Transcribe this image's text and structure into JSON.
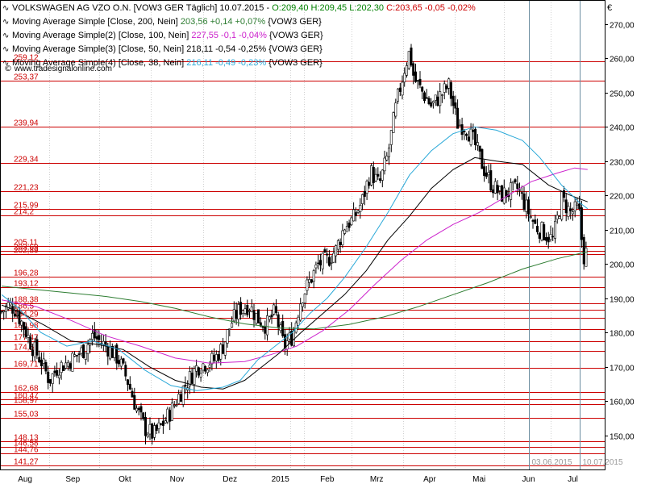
{
  "legend": {
    "title_row": {
      "name": "VOLKSWAGEN AG VZO O.N. [VOW3 GER  Täglich]",
      "date": "10.07.2015",
      "sep": "-",
      "ohlc": "O:209,40 H:209,45 L:202,30",
      "change": "C:203,65 -0,05 -0,02%"
    },
    "rows": [
      {
        "label": "Moving Average Simple [Close, 200, Nein]",
        "value": "203,56 +0,14 +0,07%",
        "ticker": "{VOW3 GER}",
        "color": "#2e7d32"
      },
      {
        "label": "Moving Average Simple(2) [Close, 100, Nein]",
        "value": "227,55 -0,1 -0,04%",
        "ticker": "{VOW3 GER}",
        "color": "#cc22cc"
      },
      {
        "label": "Moving Average Simple(3) [Close, 50, Nein]",
        "value": "218,11 -0,54 -0,25%",
        "ticker": "{VOW3 GER}",
        "color": "#000000"
      },
      {
        "label": "Moving Average Simple(4) [Close, 38, Nein]",
        "value": "216,11 -0,49 -0,23%",
        "ticker": "{VOW3 GER}",
        "color": "#29a8d8"
      }
    ],
    "icon": "wave-icon"
  },
  "source": {
    "text": "www.tradesignalonline.com",
    "icon": "copyright-icon"
  },
  "colors": {
    "hline": "#cc0000",
    "level_text": "#cc0000",
    "grid": "#d0d0d0",
    "ma200": "#2e7d32",
    "ma100": "#cc22cc",
    "ma50": "#000000",
    "ma38": "#29a8d8",
    "candle_up": "#ffffff",
    "candle_down": "#000000",
    "marker": "#6c8ea0",
    "green_text": "#008000",
    "red_text": "#cc0000"
  },
  "chart_data": {
    "type": "candlestick",
    "currency": "€",
    "y_range": [
      140,
      277
    ],
    "y_ticks": [
      150,
      160,
      170,
      180,
      190,
      200,
      210,
      220,
      230,
      240,
      250,
      260,
      270
    ],
    "y_tick_labels": [
      "150,00",
      "160,00",
      "170,00",
      "180,00",
      "190,00",
      "200,00",
      "210,00",
      "220,00",
      "230,00",
      "240,00",
      "250,00",
      "260,00",
      "270,00"
    ],
    "x_labels": [
      "Aug",
      "Sep",
      "Okt",
      "Nov",
      "Dez",
      "2015",
      "Feb",
      "Mrz",
      "Apr",
      "Mai",
      "Jun",
      "Jul"
    ],
    "x_label_days": [
      27,
      82,
      142,
      202,
      263,
      321,
      375,
      432,
      493,
      550,
      607,
      658
    ],
    "x_range_days": [
      0,
      690
    ],
    "date_markers": [
      {
        "label": "03.06.2015",
        "day": 607
      },
      {
        "label": "10.07.2015",
        "day": 666
      }
    ],
    "levels": [
      {
        "label": "239,94",
        "value": 239.94
      },
      {
        "label": "229,34",
        "value": 229.34
      },
      {
        "label": "221,23",
        "value": 221.23
      },
      {
        "label": "215,99",
        "value": 215.99
      },
      {
        "label": "214,2",
        "value": 214.2
      },
      {
        "label": "205,11",
        "value": 205.11
      },
      {
        "label": "203,69",
        "value": 203.69
      },
      {
        "label": "202,89",
        "value": 202.89
      },
      {
        "label": "196,28",
        "value": 196.28
      },
      {
        "label": "193,12",
        "value": 193.12
      },
      {
        "label": "188,38",
        "value": 188.38
      },
      {
        "label": "186,5",
        "value": 186.5
      },
      {
        "label": "184,29",
        "value": 184.29
      },
      {
        "label": "180,98",
        "value": 180.98
      },
      {
        "label": "177,47",
        "value": 177.47
      },
      {
        "label": "174,54",
        "value": 174.54
      },
      {
        "label": "169,71",
        "value": 169.71
      },
      {
        "label": "162,68",
        "value": 162.68
      },
      {
        "label": "160,47",
        "value": 160.47
      },
      {
        "label": "158,97",
        "value": 158.97
      },
      {
        "label": "155,03",
        "value": 155.03
      },
      {
        "label": "148,13",
        "value": 148.13
      },
      {
        "label": "146,58",
        "value": 146.58
      },
      {
        "label": "144,76",
        "value": 144.76
      },
      {
        "label": "141,27",
        "value": 141.27
      },
      {
        "label": "253,37",
        "value": 253.37
      },
      {
        "label": "259,12",
        "value": 259.12
      }
    ],
    "close_anchors": [
      [
        0,
        186
      ],
      [
        8,
        188
      ],
      [
        15,
        187
      ],
      [
        25,
        182
      ],
      [
        35,
        176
      ],
      [
        45,
        172
      ],
      [
        55,
        166
      ],
      [
        65,
        170
      ],
      [
        75,
        171
      ],
      [
        85,
        173
      ],
      [
        95,
        175
      ],
      [
        105,
        179
      ],
      [
        115,
        177
      ],
      [
        125,
        175
      ],
      [
        135,
        172
      ],
      [
        145,
        166
      ],
      [
        155,
        158
      ],
      [
        165,
        152
      ],
      [
        175,
        150
      ],
      [
        185,
        153
      ],
      [
        195,
        157
      ],
      [
        205,
        162
      ],
      [
        215,
        166
      ],
      [
        225,
        170
      ],
      [
        235,
        171
      ],
      [
        245,
        172
      ],
      [
        255,
        176
      ],
      [
        265,
        183
      ],
      [
        275,
        187
      ],
      [
        285,
        188
      ],
      [
        295,
        184
      ],
      [
        305,
        182
      ],
      [
        315,
        186
      ],
      [
        325,
        176
      ],
      [
        335,
        179
      ],
      [
        345,
        190
      ],
      [
        355,
        195
      ],
      [
        365,
        200
      ],
      [
        375,
        201
      ],
      [
        385,
        204
      ],
      [
        395,
        211
      ],
      [
        405,
        213
      ],
      [
        415,
        218
      ],
      [
        425,
        227
      ],
      [
        435,
        223
      ],
      [
        445,
        232
      ],
      [
        455,
        247
      ],
      [
        465,
        258
      ],
      [
        470,
        262
      ],
      [
        475,
        254
      ],
      [
        485,
        250
      ],
      [
        495,
        246
      ],
      [
        505,
        249
      ],
      [
        515,
        252
      ],
      [
        525,
        241
      ],
      [
        535,
        240
      ],
      [
        545,
        235
      ],
      [
        555,
        228
      ],
      [
        565,
        223
      ],
      [
        575,
        220
      ],
      [
        585,
        221
      ],
      [
        595,
        222
      ],
      [
        605,
        216
      ],
      [
        615,
        211
      ],
      [
        625,
        209
      ],
      [
        635,
        207
      ],
      [
        645,
        219
      ],
      [
        655,
        215
      ],
      [
        665,
        216
      ],
      [
        670,
        202
      ],
      [
        675,
        204
      ]
    ],
    "series": [
      {
        "name": "Moving Average Simple [Close, 200, Nein]",
        "color_key": "ma200",
        "points": [
          [
            0,
            193.5
          ],
          [
            40,
            192.5
          ],
          [
            80,
            191.5
          ],
          [
            120,
            190.5
          ],
          [
            160,
            189
          ],
          [
            200,
            187
          ],
          [
            240,
            184.5
          ],
          [
            280,
            182.5
          ],
          [
            320,
            181.3
          ],
          [
            360,
            181
          ],
          [
            400,
            182.3
          ],
          [
            440,
            184.5
          ],
          [
            480,
            187.5
          ],
          [
            520,
            191
          ],
          [
            560,
            194.5
          ],
          [
            600,
            198.5
          ],
          [
            640,
            201.5
          ],
          [
            675,
            203.56
          ]
        ]
      },
      {
        "name": "Moving Average Simple(2) [Close, 100, Nein]",
        "color_key": "ma100",
        "points": [
          [
            0,
            189.5
          ],
          [
            40,
            187.5
          ],
          [
            80,
            183.5
          ],
          [
            120,
            179
          ],
          [
            160,
            176
          ],
          [
            200,
            172.5
          ],
          [
            240,
            171
          ],
          [
            280,
            171.5
          ],
          [
            310,
            173.5
          ],
          [
            340,
            176
          ],
          [
            370,
            180.5
          ],
          [
            400,
            186.5
          ],
          [
            430,
            194
          ],
          [
            460,
            201
          ],
          [
            490,
            207
          ],
          [
            520,
            211.5
          ],
          [
            550,
            215
          ],
          [
            580,
            219.5
          ],
          [
            610,
            224
          ],
          [
            640,
            226.5
          ],
          [
            660,
            228
          ],
          [
            675,
            227.55
          ]
        ]
      },
      {
        "name": "Moving Average Simple(3) [Close, 50, Nein]",
        "color_key": "ma50",
        "points": [
          [
            0,
            188
          ],
          [
            20,
            186
          ],
          [
            50,
            182
          ],
          [
            80,
            177.5
          ],
          [
            110,
            176.5
          ],
          [
            140,
            175
          ],
          [
            170,
            170
          ],
          [
            200,
            166
          ],
          [
            230,
            164
          ],
          [
            255,
            163.5
          ],
          [
            280,
            166
          ],
          [
            300,
            170
          ],
          [
            320,
            174
          ],
          [
            345,
            180
          ],
          [
            370,
            185.5
          ],
          [
            395,
            191
          ],
          [
            420,
            198
          ],
          [
            445,
            207
          ],
          [
            470,
            214
          ],
          [
            495,
            222
          ],
          [
            520,
            227.5
          ],
          [
            545,
            231
          ],
          [
            570,
            230
          ],
          [
            600,
            229
          ],
          [
            630,
            223
          ],
          [
            655,
            220
          ],
          [
            675,
            218.11
          ]
        ]
      },
      {
        "name": "Moving Average Simple(4) [Close, 38, Nein]",
        "color_key": "ma38",
        "points": [
          [
            0,
            191
          ],
          [
            20,
            187
          ],
          [
            45,
            180
          ],
          [
            75,
            176
          ],
          [
            105,
            177.5
          ],
          [
            135,
            175
          ],
          [
            165,
            169
          ],
          [
            195,
            164.5
          ],
          [
            225,
            163
          ],
          [
            255,
            164
          ],
          [
            275,
            166
          ],
          [
            295,
            172
          ],
          [
            315,
            176
          ],
          [
            335,
            180
          ],
          [
            355,
            185.5
          ],
          [
            375,
            190
          ],
          [
            395,
            196
          ],
          [
            420,
            205
          ],
          [
            445,
            215
          ],
          [
            470,
            226
          ],
          [
            495,
            233
          ],
          [
            520,
            238
          ],
          [
            545,
            240
          ],
          [
            570,
            239
          ],
          [
            600,
            236
          ],
          [
            620,
            231
          ],
          [
            645,
            223
          ],
          [
            665,
            218
          ],
          [
            675,
            216.11
          ]
        ]
      }
    ]
  }
}
